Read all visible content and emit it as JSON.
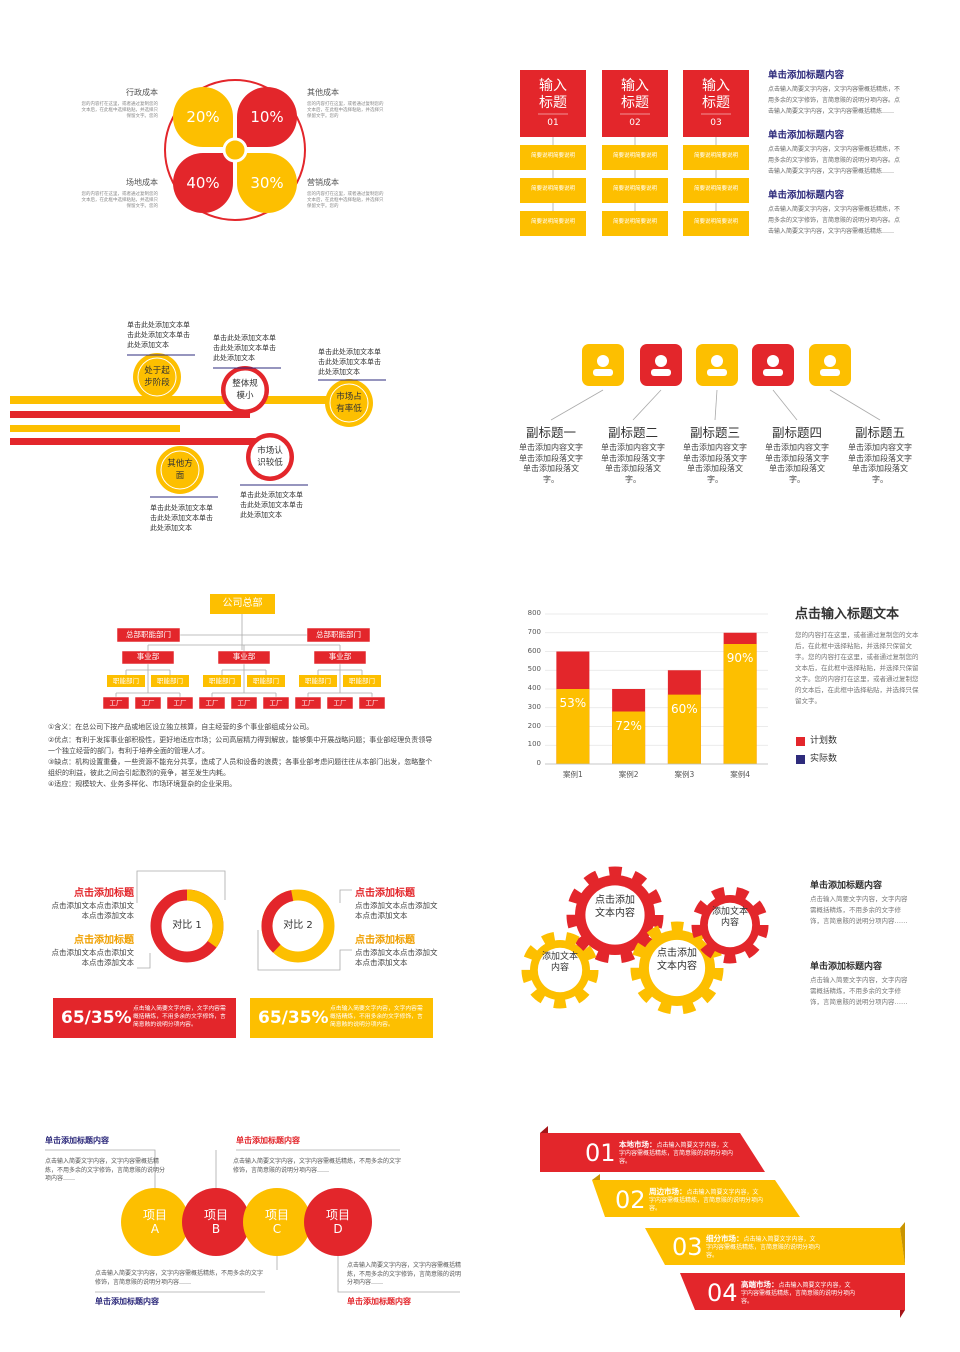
{
  "cost_panel": {
    "items": [
      {
        "label": "行政成本",
        "percent": "20%",
        "description": "您的内容打在这里，或者通过复制您的文本后，在此框中选择粘贴，并选择只保留文字。您的"
      },
      {
        "label": "其他成本",
        "percent": "10%",
        "description": "您的内容打在这里，或者通过复制您的文本后，在此框中选择粘贴，并选择只保留文字。您的"
      },
      {
        "label": "场地成本",
        "percent": "40%",
        "description": "您的内容打在这里，或者通过复制您的文本后，在此框中选择粘贴，并选择只保留文字。您的"
      },
      {
        "label": "营销成本",
        "percent": "30%",
        "description": "您的内容打在这里，或者通过复制您的文本后，在此框中选择粘贴，并选择只保留文字。您的"
      }
    ]
  },
  "title_boxes": {
    "boxes": [
      {
        "title": "输入标题",
        "number": "01",
        "steps": [
          "简要说明简要说明",
          "简要说明简要说明",
          "简要说明简要说明"
        ]
      },
      {
        "title": "输入标题",
        "number": "02",
        "steps": [
          "简要说明简要说明",
          "简要说明简要说明",
          "简要说明简要说明"
        ]
      },
      {
        "title": "输入标题",
        "number": "03",
        "steps": [
          "简要说明简要说明",
          "简要说明简要说明",
          "简要说明简要说明"
        ]
      }
    ],
    "notes": [
      {
        "title": "单击添加标题内容",
        "text": "点击输入简要文字内容，文字内容需概括精炼，不用多余的文字修饰，言简意赅的说明分项内容。点击输入简要文字内容，文字内容需概括精炼……"
      },
      {
        "title": "单击添加标题内容",
        "text": "点击输入简要文字内容，文字内容需概括精炼，不用多余的文字修饰，言简意赅的说明分项内容。点击输入简要文字内容，文字内容需概括精炼……"
      },
      {
        "title": "单击添加标题内容",
        "text": "点击输入简要文字内容，文字内容需概括精炼，不用多余的文字修饰，言简意赅的说明分项内容。点击输入简要文字内容，文字内容需概括精炼……"
      }
    ]
  },
  "timeline": {
    "stages": [
      {
        "label": "处于起步阶段",
        "note": "单击此处添加文本单击此处添加文本单击此处添加文本"
      },
      {
        "label": "整体规模小",
        "note": "单击此处添加文本单击此处添加文本单击此处添加文本"
      },
      {
        "label": "市场占有率低",
        "note": "单击此处添加文本单击此处添加文本单击此处添加文本"
      },
      {
        "label": "其他方面",
        "note": "单击此处添加文本单击此处添加文本单击此处添加文本"
      },
      {
        "label": "市场认识较低",
        "note": "单击此处添加文本单击此处添加文本单击此处添加文本"
      }
    ]
  },
  "icon_row": {
    "items": [
      {
        "title": "副标题一",
        "text": "单击添加内容文字单击添加段落文字单击添加段落文字。"
      },
      {
        "title": "副标题二",
        "text": "单击添加内容文字单击添加段落文字单击添加段落文字。"
      },
      {
        "title": "副标题三",
        "text": "单击添加内容文字单击添加段落文字单击添加段落文字。"
      },
      {
        "title": "副标题四",
        "text": "单击添加内容文字单击添加段落文字单击添加段落文字。"
      },
      {
        "title": "副标题五",
        "text": "单击添加内容文字单击添加段落文字单击添加段落文字。"
      }
    ]
  },
  "org_chart": {
    "root": "公司总部",
    "functions": [
      "总部职能部门",
      "总部职能部门"
    ],
    "divisions": [
      {
        "name": "事业部",
        "departments": [
          "职能部门",
          "职能部门"
        ],
        "factories": [
          "工厂",
          "工厂",
          "工厂"
        ]
      },
      {
        "name": "事业部",
        "departments": [
          "职能部门",
          "职能部门"
        ],
        "factories": [
          "工厂",
          "工厂",
          "工厂"
        ]
      },
      {
        "name": "事业部",
        "departments": [
          "职能部门",
          "职能部门"
        ],
        "factories": [
          "工厂",
          "工厂",
          "工厂"
        ]
      }
    ],
    "notes": [
      "①含义：在总公司下按产品或地区设立独立核算，自主经营的多个事业部组成分公司。",
      "②优点：有利于发挥事业部积极性，更好地适应市场；公司高层精力得到解放，能够集中开展战略问题；事业部经理负责领导一个独立经营的部门，有利于培养全面的管理人才。",
      "③缺点：机构设置重叠，一些资源不能充分共享，造成了人员和设备的浪费；各事业部考虑问题往往从本部门出发，忽略整个组织的利益，彼此之间会引起激烈的竞争，甚至发生内耗。",
      "④适应：规模较大、业务多样化、市场环境复杂的企业采用。"
    ]
  },
  "chart_data": {
    "type": "bar",
    "title": "点击输入标题文本",
    "description": "您的内容打在这里，或者通过复制您的文本后，在此框中选择粘贴，并选择只保留文字。您的内容打在这里，或者通过复制您的文本后，在此框中选择粘贴，并选择只保留文字。您的内容打在这里，或者通过复制您的文本后，在此框中选择粘贴，并选择只保留文字。",
    "categories": [
      "案例1",
      "案例2",
      "案例3",
      "案例4"
    ],
    "series": [
      {
        "name": "计划数",
        "color": "#e3262b",
        "legend_color": "#e3262b",
        "values": [
          600,
          400,
          500,
          700
        ]
      },
      {
        "name": "实际数",
        "color": "#fdbf00",
        "legend_color": "#2e2b7c",
        "values": [
          400,
          280,
          370,
          640
        ]
      }
    ],
    "rate_labels": [
      "53%",
      "72%",
      "60%",
      "90%"
    ],
    "ylim": [
      0,
      800
    ],
    "yticks": [
      0,
      100,
      200,
      300,
      400,
      500,
      600,
      700,
      800
    ],
    "grid": true
  },
  "comparison": {
    "donuts": [
      "对比 1",
      "对比 2"
    ],
    "callouts": [
      {
        "title": "点击添加标题",
        "text": "点击添加文本点击添加文本点击添加文本"
      },
      {
        "title": "点击添加标题",
        "text": "点击添加文本点击添加文本点击添加文本"
      },
      {
        "title": "点击添加标题",
        "text": "点击添加文本点击添加文本点击添加文本"
      },
      {
        "title": "点击添加标题",
        "text": "点击添加文本点击添加文本点击添加文本"
      }
    ],
    "banners": [
      {
        "ratio": "65/35%",
        "text": "点击输入简要文字内容，文字内容需概括精炼，不用多余的文字修饰，言简意赅的说明分项内容。"
      },
      {
        "ratio": "65/35%",
        "text": "点击输入简要文字内容，文字内容需概括精炼，不用多余的文字修饰，言简意赅的说明分项内容。"
      }
    ]
  },
  "gears": {
    "labels": [
      "点击添加文本内容",
      "添加文本内容",
      "点击添加文本内容",
      "添加文本内容"
    ],
    "notes": [
      {
        "title": "单击添加标题内容",
        "text": "点击输入简要文字内容，文字内容需概括精炼，不用多余的文字修饰，言简意赅的说明分项内容……"
      },
      {
        "title": "单击添加标题内容",
        "text": "点击输入简要文字内容，文字内容需概括精炼，不用多余的文字修饰，言简意赅的说明分项内容……"
      }
    ]
  },
  "projects": {
    "items": [
      "项目A",
      "项目B",
      "项目C",
      "项目D"
    ],
    "notes": [
      {
        "title": "单击添加标题内容",
        "text": "点击输入简要文字内容，文字内容需概括精炼，不用多余的文字修饰，言简意赅的说明分项内容……"
      },
      {
        "title": "单击添加标题内容",
        "text": "点击输入简要文字内容，文字内容需概括精炼，不用多余的文字修饰，言简意赅的说明分项内容……"
      },
      {
        "title": "单击添加标题内容",
        "text": "点击输入简要文字内容，文字内容需概括精炼，不用多余的文字修饰，言简意赅的说明分项内容……"
      },
      {
        "title": "单击添加标题内容",
        "text": "点击输入简要文字内容，文字内容需概括精炼，不用多余的文字修饰，言简意赅的说明分项内容……"
      }
    ]
  },
  "markets": {
    "items": [
      {
        "number": "01",
        "label": "本地市场：",
        "text": "点击输入简要文字内容，文字内容需概括精炼，言简意赅的说明分项内容。"
      },
      {
        "number": "02",
        "label": "周边市场：",
        "text": "点击输入简要文字内容，文字内容需概括精炼，言简意赅的说明分项内容。"
      },
      {
        "number": "03",
        "label": "细分市场：",
        "text": "点击输入简要文字内容，文字内容需概括精炼，言简意赅的说明分项内容。"
      },
      {
        "number": "04",
        "label": "高端市场：",
        "text": "点击输入简要文字内容，文字内容需概括精炼，言简意赅的说明分项内容。"
      }
    ]
  }
}
